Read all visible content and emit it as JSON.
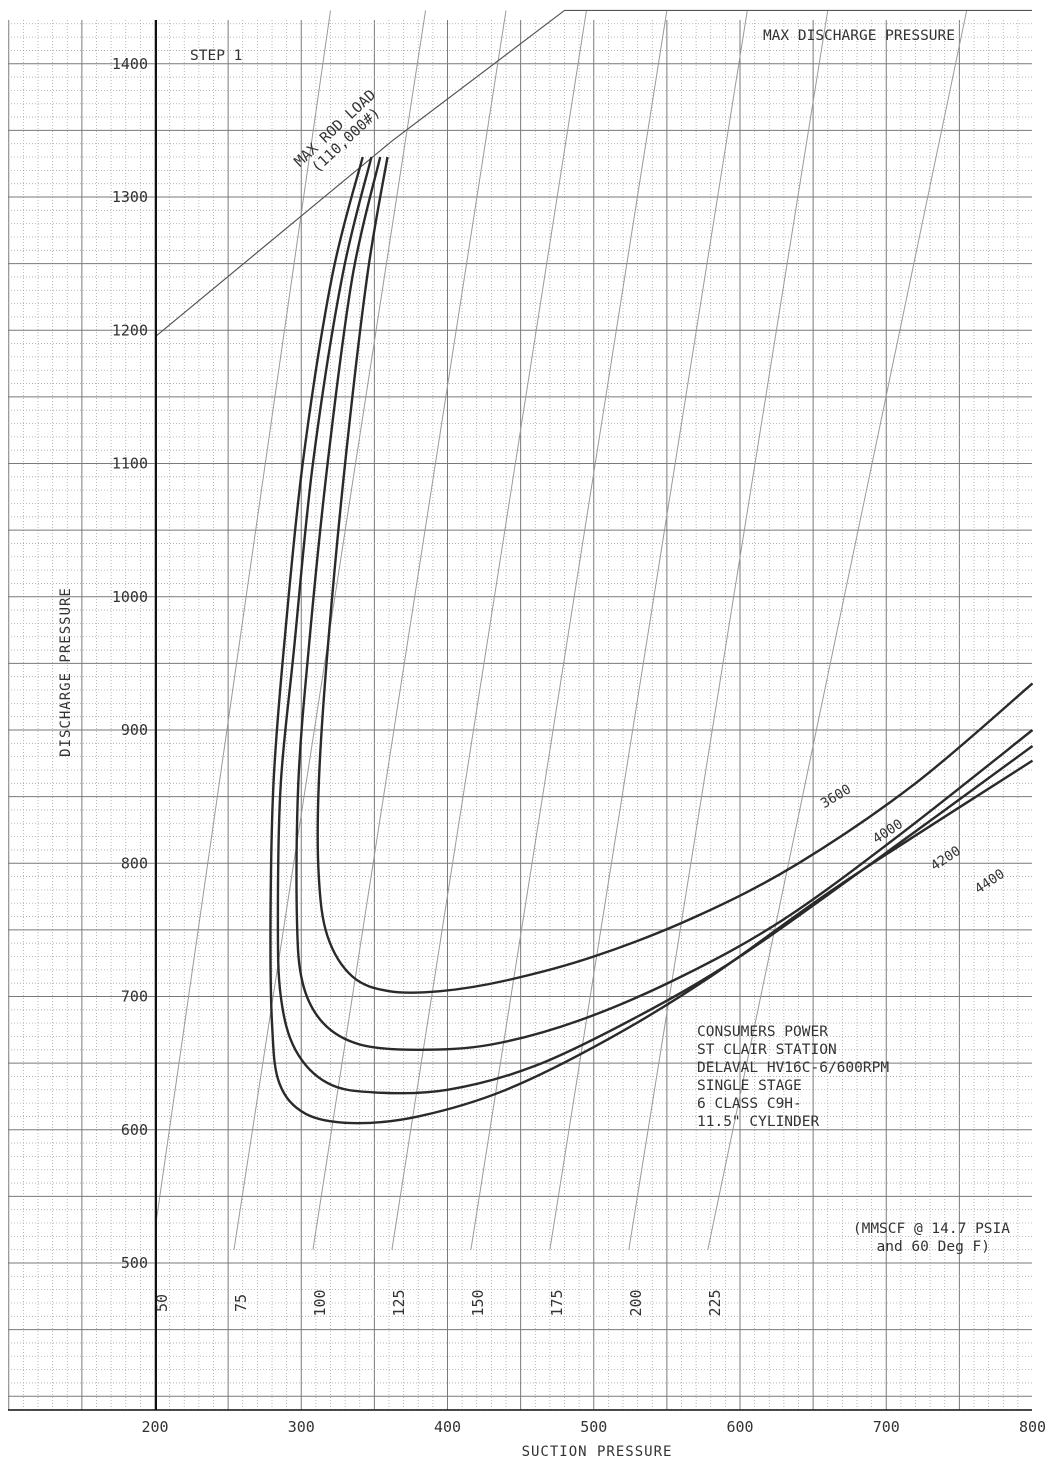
{
  "colors": {
    "grid_minor": "#a8a8a8",
    "grid_major": "#7a7a7a",
    "axis": "#111111",
    "flow_line": "#9a9a9a",
    "limit_line": "#555555",
    "curve": "#2a2a2a",
    "text": "#333333"
  },
  "chart_data": {
    "type": "line",
    "xlabel": "SUCTION PRESSURE",
    "ylabel": "DISCHARGE PRESSURE",
    "xlim": [
      100,
      800
    ],
    "ylim": [
      400,
      1440
    ],
    "xticks": [
      200,
      300,
      400,
      500,
      600,
      700,
      800
    ],
    "yticks": [
      500,
      600,
      700,
      800,
      900,
      1000,
      1100,
      1200,
      1300,
      1400
    ],
    "grid": true,
    "annotations": {
      "step": "STEP 1",
      "max_discharge": "MAX DISCHARGE PRESSURE",
      "rod_load_line1": "MAX ROD LOAD",
      "rod_load_line2": "(110,000#)",
      "info": [
        "CONSUMERS POWER",
        "ST CLAIR STATION",
        "DELAVAL HV16C-6/600RPM",
        "SINGLE STAGE",
        "6 CLASS C9H-",
        "11.5\" CYLINDER"
      ],
      "units_line1": "(MMSCF @ 14.7 PSIA",
      "units_line2": "and 60 Deg F)"
    },
    "limit_lines": {
      "max_rod_load": [
        [
          200,
          1195
        ],
        [
          362,
          1342
        ],
        [
          480,
          1440
        ]
      ],
      "max_discharge_pressure": 1440
    },
    "flow_lines": [
      {
        "label": "50",
        "points": [
          [
            200,
            525
          ],
          [
            320,
            1440
          ]
        ]
      },
      {
        "label": "75",
        "points": [
          [
            254,
            510
          ],
          [
            385,
            1440
          ]
        ]
      },
      {
        "label": "100",
        "points": [
          [
            308,
            510
          ],
          [
            440,
            1440
          ]
        ]
      },
      {
        "label": "125",
        "points": [
          [
            362,
            510
          ],
          [
            495,
            1440
          ]
        ]
      },
      {
        "label": "150",
        "points": [
          [
            416,
            510
          ],
          [
            550,
            1440
          ]
        ]
      },
      {
        "label": "175",
        "points": [
          [
            470,
            510
          ],
          [
            605,
            1440
          ]
        ]
      },
      {
        "label": "200",
        "points": [
          [
            524,
            510
          ],
          [
            660,
            1440
          ]
        ]
      },
      {
        "label": "225",
        "points": [
          [
            578,
            510
          ],
          [
            755,
            1440
          ]
        ]
      }
    ],
    "series": [
      {
        "name": "3600",
        "points": [
          [
            359,
            1330
          ],
          [
            345,
            1240
          ],
          [
            330,
            1100
          ],
          [
            318,
            960
          ],
          [
            312,
            860
          ],
          [
            312,
            790
          ],
          [
            318,
            745
          ],
          [
            335,
            715
          ],
          [
            360,
            704
          ],
          [
            395,
            704
          ],
          [
            440,
            712
          ],
          [
            500,
            730
          ],
          [
            570,
            760
          ],
          [
            640,
            800
          ],
          [
            720,
            860
          ],
          [
            800,
            935
          ]
        ]
      },
      {
        "name": "4000",
        "points": [
          [
            354,
            1330
          ],
          [
            335,
            1240
          ],
          [
            318,
            1100
          ],
          [
            305,
            960
          ],
          [
            298,
            860
          ],
          [
            297,
            760
          ],
          [
            301,
            710
          ],
          [
            315,
            680
          ],
          [
            340,
            664
          ],
          [
            380,
            660
          ],
          [
            430,
            664
          ],
          [
            490,
            682
          ],
          [
            560,
            715
          ],
          [
            630,
            758
          ],
          [
            710,
            822
          ],
          [
            800,
            900
          ]
        ]
      },
      {
        "name": "4200",
        "points": [
          [
            348,
            1330
          ],
          [
            328,
            1240
          ],
          [
            308,
            1100
          ],
          [
            295,
            960
          ],
          [
            286,
            860
          ],
          [
            284,
            760
          ],
          [
            286,
            700
          ],
          [
            296,
            660
          ],
          [
            318,
            635
          ],
          [
            350,
            628
          ],
          [
            400,
            630
          ],
          [
            460,
            648
          ],
          [
            530,
            685
          ],
          [
            600,
            730
          ],
          [
            690,
            800
          ],
          [
            800,
            888
          ]
        ]
      },
      {
        "name": "4400",
        "points": [
          [
            342,
            1330
          ],
          [
            321,
            1240
          ],
          [
            301,
            1100
          ],
          [
            288,
            960
          ],
          [
            281,
            860
          ],
          [
            279,
            760
          ],
          [
            280,
            680
          ],
          [
            285,
            635
          ],
          [
            303,
            612
          ],
          [
            335,
            605
          ],
          [
            380,
            610
          ],
          [
            440,
            630
          ],
          [
            510,
            668
          ],
          [
            580,
            715
          ],
          [
            670,
            785
          ],
          [
            800,
            877
          ]
        ]
      }
    ]
  }
}
